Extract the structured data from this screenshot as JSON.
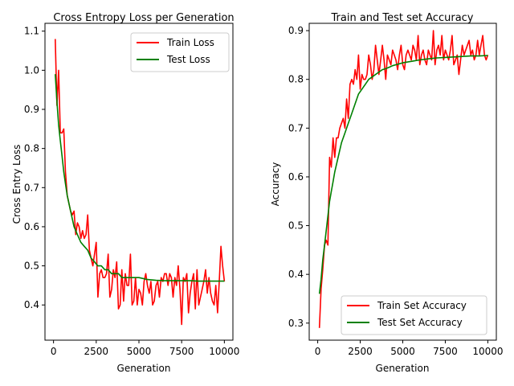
{
  "chart_data": [
    {
      "type": "line",
      "title": "Cross Entropy Loss per Generation",
      "xlabel": "Generation",
      "ylabel": "Cross Entry Loss",
      "xlim": [
        -500,
        10500
      ],
      "ylim": [
        0.31,
        1.12
      ],
      "xticks": [
        0,
        2500,
        5000,
        7500,
        10000
      ],
      "yticks": [
        0.4,
        0.5,
        0.6,
        0.7,
        0.8,
        0.9,
        1.0,
        1.1
      ],
      "legend_position": "top-right",
      "grid": false,
      "series": [
        {
          "name": "Train Loss",
          "color": "#ff0000",
          "x": [
            100,
            200,
            300,
            400,
            500,
            600,
            700,
            800,
            900,
            1000,
            1100,
            1200,
            1300,
            1400,
            1500,
            1600,
            1700,
            1800,
            1900,
            2000,
            2100,
            2200,
            2300,
            2400,
            2500,
            2600,
            2700,
            2800,
            2900,
            3000,
            3100,
            3200,
            3300,
            3400,
            3500,
            3600,
            3700,
            3800,
            3900,
            4000,
            4100,
            4200,
            4300,
            4400,
            4500,
            4600,
            4700,
            4800,
            4900,
            5000,
            5100,
            5200,
            5300,
            5400,
            5500,
            5600,
            5700,
            5800,
            5900,
            6000,
            6100,
            6200,
            6300,
            6400,
            6500,
            6600,
            6700,
            6800,
            6900,
            7000,
            7100,
            7200,
            7300,
            7400,
            7500,
            7600,
            7700,
            7800,
            7900,
            8000,
            8100,
            8200,
            8300,
            8400,
            8500,
            8600,
            8700,
            8800,
            8900,
            9000,
            9100,
            9200,
            9300,
            9400,
            9500,
            9600,
            9700,
            9800,
            9900,
            10000
          ],
          "y": [
            1.08,
            0.91,
            1.0,
            0.84,
            0.84,
            0.85,
            0.74,
            0.68,
            0.66,
            0.64,
            0.63,
            0.64,
            0.58,
            0.61,
            0.6,
            0.57,
            0.59,
            0.57,
            0.58,
            0.63,
            0.54,
            0.52,
            0.5,
            0.53,
            0.56,
            0.42,
            0.48,
            0.49,
            0.47,
            0.47,
            0.48,
            0.53,
            0.42,
            0.44,
            0.49,
            0.47,
            0.51,
            0.39,
            0.4,
            0.49,
            0.41,
            0.48,
            0.45,
            0.45,
            0.53,
            0.4,
            0.41,
            0.47,
            0.4,
            0.44,
            0.43,
            0.4,
            0.46,
            0.48,
            0.45,
            0.43,
            0.46,
            0.4,
            0.41,
            0.45,
            0.46,
            0.42,
            0.47,
            0.46,
            0.48,
            0.48,
            0.45,
            0.48,
            0.47,
            0.42,
            0.47,
            0.45,
            0.5,
            0.44,
            0.35,
            0.47,
            0.46,
            0.48,
            0.38,
            0.43,
            0.46,
            0.48,
            0.39,
            0.49,
            0.4,
            0.42,
            0.44,
            0.46,
            0.49,
            0.43,
            0.47,
            0.43,
            0.41,
            0.4,
            0.45,
            0.38,
            0.46,
            0.55,
            0.5,
            0.46
          ],
          "y_fix": true
        },
        {
          "name": "Test Loss",
          "color": "#008000",
          "x": [
            100,
            200,
            300,
            400,
            500,
            600,
            700,
            800,
            900,
            1000,
            1200,
            1400,
            1600,
            1800,
            2000,
            2200,
            2400,
            2600,
            2800,
            3000,
            3200,
            3400,
            3600,
            3800,
            4000,
            4200,
            4400,
            4600,
            4800,
            5000,
            5500,
            6000,
            6500,
            7000,
            7500,
            8000,
            8500,
            9000,
            9500,
            10000
          ],
          "y": [
            0.99,
            0.92,
            0.86,
            0.82,
            0.78,
            0.74,
            0.71,
            0.68,
            0.66,
            0.64,
            0.6,
            0.58,
            0.56,
            0.55,
            0.54,
            0.52,
            0.51,
            0.5,
            0.5,
            0.49,
            0.49,
            0.48,
            0.48,
            0.48,
            0.47,
            0.47,
            0.47,
            0.47,
            0.47,
            0.47,
            0.465,
            0.463,
            0.462,
            0.462,
            0.462,
            0.462,
            0.461,
            0.461,
            0.461,
            0.461
          ]
        }
      ]
    },
    {
      "type": "line",
      "title": "Train and Test set Accuracy",
      "xlabel": "Generation",
      "ylabel": "Accuracy",
      "xlim": [
        -500,
        10500
      ],
      "ylim": [
        0.265,
        0.915
      ],
      "xticks": [
        0,
        2500,
        5000,
        7500,
        10000
      ],
      "yticks": [
        0.3,
        0.4,
        0.5,
        0.6,
        0.7,
        0.8,
        0.9
      ],
      "legend_position": "bottom-right",
      "grid": false,
      "series": [
        {
          "name": "Train Set Accuracy",
          "color": "#ff0000",
          "x": [
            100,
            200,
            300,
            400,
            500,
            600,
            700,
            800,
            900,
            1000,
            1100,
            1200,
            1300,
            1400,
            1500,
            1600,
            1700,
            1800,
            1900,
            2000,
            2100,
            2200,
            2300,
            2400,
            2500,
            2600,
            2700,
            2800,
            2900,
            3000,
            3100,
            3200,
            3300,
            3400,
            3500,
            3600,
            3700,
            3800,
            3900,
            4000,
            4100,
            4200,
            4300,
            4400,
            4500,
            4600,
            4700,
            4800,
            4900,
            5000,
            5100,
            5200,
            5300,
            5400,
            5500,
            5600,
            5700,
            5800,
            5900,
            6000,
            6100,
            6200,
            6300,
            6400,
            6500,
            6600,
            6700,
            6800,
            6900,
            7000,
            7100,
            7200,
            7300,
            7400,
            7500,
            7600,
            7700,
            7800,
            7900,
            8000,
            8100,
            8200,
            8300,
            8400,
            8500,
            8600,
            8700,
            8800,
            8900,
            9000,
            9100,
            9200,
            9300,
            9400,
            9500,
            9600,
            9700,
            9800,
            9900,
            10000
          ],
          "y": [
            0.29,
            0.37,
            0.41,
            0.46,
            0.47,
            0.46,
            0.64,
            0.62,
            0.68,
            0.64,
            0.68,
            0.68,
            0.7,
            0.71,
            0.72,
            0.7,
            0.76,
            0.72,
            0.79,
            0.8,
            0.79,
            0.82,
            0.8,
            0.85,
            0.78,
            0.81,
            0.8,
            0.8,
            0.81,
            0.85,
            0.83,
            0.8,
            0.82,
            0.87,
            0.84,
            0.81,
            0.84,
            0.87,
            0.84,
            0.8,
            0.85,
            0.84,
            0.83,
            0.86,
            0.85,
            0.84,
            0.82,
            0.85,
            0.87,
            0.83,
            0.82,
            0.85,
            0.86,
            0.85,
            0.84,
            0.87,
            0.86,
            0.84,
            0.89,
            0.83,
            0.85,
            0.86,
            0.84,
            0.83,
            0.86,
            0.85,
            0.84,
            0.9,
            0.83,
            0.86,
            0.87,
            0.85,
            0.89,
            0.84,
            0.86,
            0.85,
            0.84,
            0.86,
            0.89,
            0.83,
            0.84,
            0.85,
            0.81,
            0.84,
            0.87,
            0.85,
            0.86,
            0.87,
            0.88,
            0.85,
            0.86,
            0.84,
            0.85,
            0.88,
            0.85,
            0.87,
            0.89,
            0.85,
            0.84,
            0.85
          ]
        },
        {
          "name": "Test Set Accuracy",
          "color": "#008000",
          "x": [
            100,
            200,
            300,
            400,
            500,
            600,
            700,
            800,
            900,
            1000,
            1200,
            1400,
            1600,
            1800,
            2000,
            2200,
            2400,
            2600,
            2800,
            3000,
            3200,
            3400,
            3600,
            3800,
            4000,
            4200,
            4400,
            4600,
            4800,
            5000,
            5500,
            6000,
            6500,
            7000,
            7500,
            8000,
            8500,
            9000,
            9500,
            10000
          ],
          "y": [
            0.36,
            0.39,
            0.43,
            0.46,
            0.49,
            0.52,
            0.55,
            0.57,
            0.59,
            0.61,
            0.64,
            0.67,
            0.69,
            0.71,
            0.73,
            0.75,
            0.77,
            0.78,
            0.79,
            0.8,
            0.805,
            0.81,
            0.815,
            0.82,
            0.822,
            0.825,
            0.828,
            0.83,
            0.832,
            0.834,
            0.837,
            0.84,
            0.842,
            0.844,
            0.845,
            0.846,
            0.847,
            0.848,
            0.848,
            0.849
          ]
        }
      ]
    }
  ]
}
